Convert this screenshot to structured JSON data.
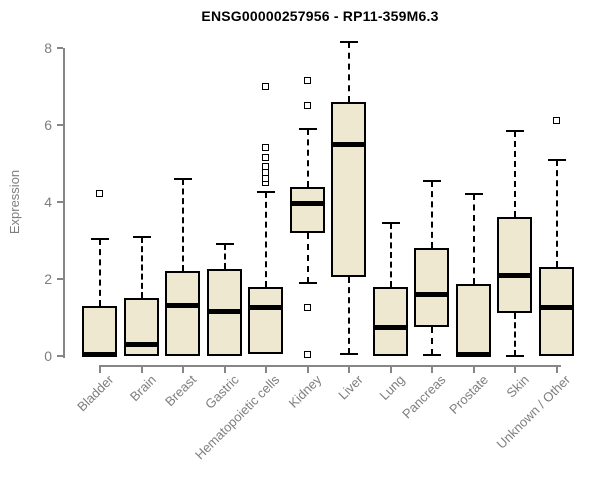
{
  "title": "ENSG00000257956 - RP11-359M6.3",
  "chart_data": {
    "type": "boxplot",
    "title": "ENSG00000257956 - RP11-359M6.3",
    "xlabel": "",
    "ylabel": "Expression",
    "ylim": [
      0,
      8.3
    ],
    "yticks": [
      0,
      2,
      4,
      6,
      8
    ],
    "grid": false,
    "legend": false,
    "categories": [
      "Bladder",
      "Brain",
      "Breast",
      "Gastric",
      "Hematopoietic cells",
      "Kidney",
      "Liver",
      "Lung",
      "Pancreas",
      "Prostate",
      "Skin",
      "Unknown / Other"
    ],
    "series": [
      {
        "name": "Bladder",
        "whisker_low": 0,
        "q1": 0,
        "median": 0.05,
        "q3": 1.3,
        "whisker_high": 3.05,
        "outliers": [
          4.2
        ]
      },
      {
        "name": "Brain",
        "whisker_low": 0,
        "q1": 0,
        "median": 0.3,
        "q3": 1.5,
        "whisker_high": 3.1,
        "outliers": []
      },
      {
        "name": "Breast",
        "whisker_low": 0,
        "q1": 0,
        "median": 1.3,
        "q3": 2.2,
        "whisker_high": 4.6,
        "outliers": []
      },
      {
        "name": "Gastric",
        "whisker_low": 0,
        "q1": 0,
        "median": 1.15,
        "q3": 2.25,
        "whisker_high": 2.9,
        "outliers": []
      },
      {
        "name": "Hematopoietic cells",
        "whisker_low": 0.05,
        "q1": 0.05,
        "median": 1.25,
        "q3": 1.8,
        "whisker_high": 4.25,
        "outliers": [
          4.5,
          4.6,
          4.75,
          4.9,
          5.15,
          5.4,
          7.0
        ]
      },
      {
        "name": "Kidney",
        "whisker_low": 1.9,
        "q1": 3.2,
        "median": 3.95,
        "q3": 4.4,
        "whisker_high": 5.9,
        "outliers": [
          0.03,
          1.25,
          6.5,
          7.15
        ]
      },
      {
        "name": "Liver",
        "whisker_low": 0.05,
        "q1": 2.05,
        "median": 5.5,
        "q3": 6.6,
        "whisker_high": 8.15,
        "outliers": []
      },
      {
        "name": "Lung",
        "whisker_low": 0,
        "q1": 0,
        "median": 0.75,
        "q3": 1.8,
        "whisker_high": 3.45,
        "outliers": []
      },
      {
        "name": "Pancreas",
        "whisker_low": 0.03,
        "q1": 0.75,
        "median": 1.6,
        "q3": 2.8,
        "whisker_high": 4.55,
        "outliers": []
      },
      {
        "name": "Prostate",
        "whisker_low": 0,
        "q1": 0,
        "median": 0.05,
        "q3": 1.88,
        "whisker_high": 4.2,
        "outliers": []
      },
      {
        "name": "Skin",
        "whisker_low": 0,
        "q1": 1.12,
        "median": 2.1,
        "q3": 3.6,
        "whisker_high": 5.85,
        "outliers": []
      },
      {
        "name": "Unknown / Other",
        "whisker_low": 0,
        "q1": 0,
        "median": 1.25,
        "q3": 2.3,
        "whisker_high": 5.1,
        "outliers": [
          6.1
        ]
      }
    ],
    "style": {
      "box_fill": "#EDE8CF",
      "box_border": "#000000",
      "median_color": "#000000",
      "whisker_color": "#000000",
      "axis_color": "#868686",
      "text_color": "#7E7E7E",
      "title_color": "#000000"
    }
  }
}
